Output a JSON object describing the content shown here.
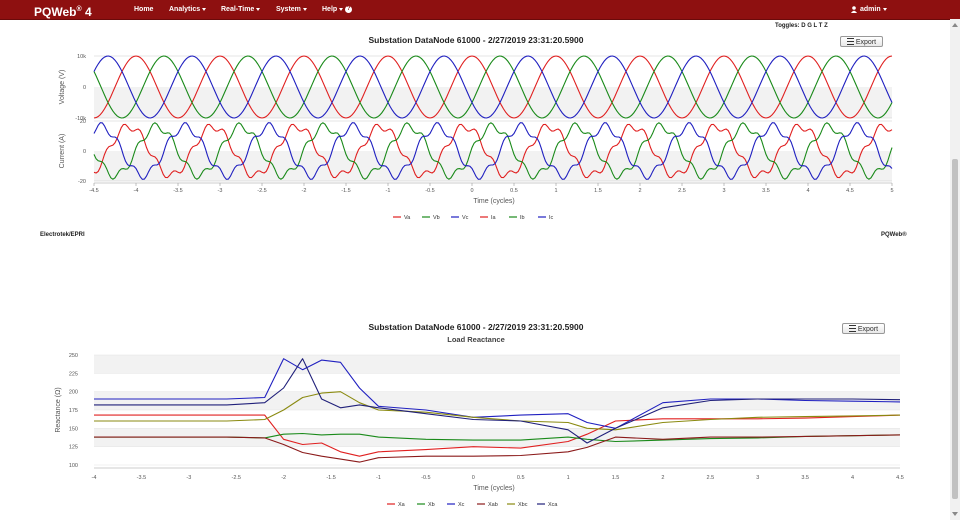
{
  "navbar": {
    "brand": "PQWeb",
    "brand_sup": "®",
    "brand_version": " 4",
    "items": [
      {
        "label": "Home",
        "dropdown": false
      },
      {
        "label": "Analytics",
        "dropdown": true
      },
      {
        "label": "Real-Time",
        "dropdown": true
      },
      {
        "label": "System",
        "dropdown": true
      },
      {
        "label": "Help",
        "dropdown": true,
        "icon": "help-icon"
      }
    ],
    "user": "admin",
    "user_icon": "user-icon",
    "color": "#8e1010"
  },
  "toggles": "Toggles: D G L T Z",
  "export_label": "Export",
  "footer_left": "Electrotek/EPRI",
  "footer_right": "PQWeb®",
  "chart_data": [
    {
      "type": "line",
      "title": "Substation DataNode 61000 - 2/27/2019 23:31:20.5900",
      "xlabel": "Time (cycles)",
      "xlim": [
        -4.5,
        5
      ],
      "xticks": [
        "-4.5",
        "-4",
        "-3.5",
        "-3",
        "-2.5",
        "-2",
        "-1.5",
        "-1",
        "-0.5",
        "0",
        "0.5",
        "1",
        "1.5",
        "2",
        "2.5",
        "3",
        "3.5",
        "4",
        "4.5",
        "5"
      ],
      "panels": [
        {
          "ylabel": "Voltage (V)",
          "yticks": [
            "10k",
            "0",
            "-10k"
          ],
          "ylim": [
            -10000,
            10000
          ],
          "series": [
            {
              "name": "Va",
              "color": "#e02020",
              "amplitude": 10000,
              "phase_deg": 90
            },
            {
              "name": "Vb",
              "color": "#1a8a1a",
              "amplitude": 10000,
              "phase_deg": -30
            },
            {
              "name": "Vc",
              "color": "#2020c0",
              "amplitude": 10000,
              "phase_deg": 210
            }
          ]
        },
        {
          "ylabel": "Current (A)",
          "yticks": [
            "20",
            "0",
            "-20"
          ],
          "ylim": [
            -22,
            22
          ],
          "series": [
            {
              "name": "Ia",
              "color": "#e02020",
              "amplitude": 18,
              "phase_deg": 120
            },
            {
              "name": "Ib",
              "color": "#1a8a1a",
              "amplitude": 18,
              "phase_deg": 0
            },
            {
              "name": "Ic",
              "color": "#2020c0",
              "amplitude": 18,
              "phase_deg": 240
            }
          ]
        }
      ],
      "legend": [
        "Va",
        "Vb",
        "Vc",
        "Ia",
        "Ib",
        "Ic"
      ],
      "legend_position": "bottom-center"
    },
    {
      "type": "line",
      "title": "Substation DataNode 61000 - 2/27/2019 23:31:20.5900",
      "subtitle": "Load Reactance",
      "xlabel": "Time (cycles)",
      "ylabel": "Reactance (Ω)",
      "xlim": [
        -4,
        4.5
      ],
      "ylim": [
        100,
        250
      ],
      "xticks": [
        "-4",
        "-3.5",
        "-3",
        "-2.5",
        "-2",
        "-1.5",
        "-1",
        "-0.5",
        "0",
        "0.5",
        "1",
        "1.5",
        "2",
        "2.5",
        "3",
        "3.5",
        "4",
        "4.5"
      ],
      "yticks": [
        "250",
        "225",
        "200",
        "175",
        "150",
        "125",
        "100"
      ],
      "legend_position": "bottom-center",
      "x": [
        -4,
        -2.6,
        -2.2,
        -2,
        -1.8,
        -1.6,
        -1.4,
        -1.2,
        -1,
        -0.5,
        0,
        0.5,
        1,
        1.2,
        1.5,
        2,
        2.5,
        3,
        3.5,
        4,
        4.5
      ],
      "series": [
        {
          "name": "Xa",
          "color": "#e02020",
          "values": [
            168,
            168,
            168,
            135,
            128,
            130,
            118,
            112,
            118,
            121,
            125,
            123,
            132,
            142,
            160,
            163,
            163,
            163,
            164,
            166,
            168
          ]
        },
        {
          "name": "Xb",
          "color": "#1a8a1a",
          "values": [
            138,
            138,
            137,
            142,
            143,
            141,
            142,
            142,
            138,
            135,
            134,
            134,
            138,
            135,
            132,
            134,
            136,
            137,
            139,
            140,
            141
          ]
        },
        {
          "name": "Xc",
          "color": "#2020c0",
          "values": [
            190,
            190,
            192,
            245,
            230,
            243,
            240,
            205,
            180,
            175,
            165,
            168,
            170,
            158,
            150,
            185,
            190,
            190,
            188,
            187,
            186
          ]
        },
        {
          "name": "Xab",
          "color": "#8b1a1a",
          "values": [
            138,
            138,
            137,
            128,
            117,
            112,
            108,
            104,
            110,
            112,
            112,
            113,
            118,
            124,
            138,
            135,
            138,
            138,
            139,
            140,
            141
          ]
        },
        {
          "name": "Xbc",
          "color": "#8a8a10",
          "values": [
            160,
            160,
            162,
            175,
            192,
            198,
            200,
            185,
            175,
            172,
            165,
            160,
            158,
            150,
            148,
            158,
            162,
            165,
            166,
            167,
            168
          ]
        },
        {
          "name": "Xca",
          "color": "#20207a",
          "values": [
            182,
            182,
            185,
            205,
            245,
            190,
            178,
            182,
            178,
            170,
            162,
            160,
            148,
            130,
            150,
            178,
            188,
            190,
            190,
            190,
            189
          ]
        }
      ]
    }
  ]
}
